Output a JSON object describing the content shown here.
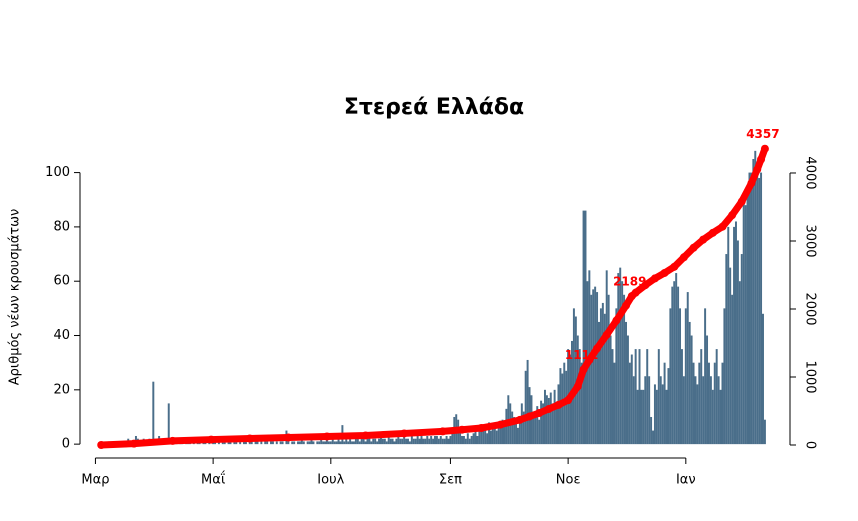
{
  "chart_data": {
    "type": "bar_line",
    "title": "Στερεά Ελλάδα",
    "ylabel": "Αριθμός νέων κρουσμάτων",
    "xlim": [
      -8,
      360
    ],
    "xticks": [
      {
        "value": 0,
        "label": "Μαρ"
      },
      {
        "value": 61,
        "label": "Μαΐ"
      },
      {
        "value": 122,
        "label": "Ιουλ"
      },
      {
        "value": 184,
        "label": "Σεπ"
      },
      {
        "value": 245,
        "label": "Νοε"
      },
      {
        "value": 306,
        "label": "Ιαν"
      }
    ],
    "ylim": [
      -4,
      112
    ],
    "yticks": [
      0,
      20,
      40,
      60,
      80,
      100
    ],
    "y2lim": [
      -147,
      4485
    ],
    "y2ticks": [
      0,
      1000,
      2000,
      3000,
      4000
    ],
    "series": [
      {
        "type": "bar",
        "color": "#4a6e8a",
        "x": [
          3,
          4,
          5,
          6,
          7,
          8,
          9,
          10,
          11,
          12,
          13,
          14,
          15,
          16,
          17,
          18,
          19,
          20,
          21,
          22,
          23,
          24,
          25,
          26,
          27,
          28,
          29,
          30,
          31,
          32,
          33,
          34,
          35,
          36,
          37,
          38,
          39,
          40,
          41,
          42,
          43,
          44,
          45,
          46,
          47,
          48,
          49,
          50,
          51,
          52,
          53,
          54,
          55,
          56,
          57,
          58,
          59,
          60,
          61,
          62,
          63,
          64,
          65,
          66,
          67,
          68,
          69,
          70,
          71,
          72,
          73,
          74,
          75,
          76,
          77,
          78,
          79,
          80,
          81,
          82,
          83,
          84,
          85,
          86,
          87,
          88,
          89,
          90,
          91,
          92,
          93,
          94,
          95,
          96,
          97,
          98,
          99,
          100,
          101,
          102,
          103,
          104,
          105,
          106,
          107,
          108,
          109,
          110,
          111,
          112,
          113,
          114,
          115,
          116,
          117,
          118,
          119,
          120,
          121,
          122,
          123,
          124,
          125,
          126,
          127,
          128,
          129,
          130,
          131,
          132,
          133,
          134,
          135,
          136,
          137,
          138,
          139,
          140,
          141,
          142,
          143,
          144,
          145,
          146,
          147,
          148,
          149,
          150,
          151,
          152,
          153,
          154,
          155,
          156,
          157,
          158,
          159,
          160,
          161,
          162,
          163,
          164,
          165,
          166,
          167,
          168,
          169,
          170,
          171,
          172,
          173,
          174,
          175,
          176,
          177,
          178,
          179,
          180,
          181,
          182,
          183,
          184,
          185,
          186,
          187,
          188,
          189,
          190,
          191,
          192,
          193,
          194,
          195,
          196,
          197,
          198,
          199,
          200,
          201,
          202,
          203,
          204,
          205,
          206,
          207,
          208,
          209,
          210,
          211,
          212,
          213,
          214,
          215,
          216,
          217,
          218,
          219,
          220,
          221,
          222,
          223,
          224,
          225,
          226,
          227,
          228,
          229,
          230,
          231,
          232,
          233,
          234,
          235,
          236,
          237,
          238,
          239,
          240,
          241,
          242,
          243,
          244,
          245,
          246,
          247,
          248,
          249,
          250,
          251,
          252,
          253,
          254,
          255,
          256,
          257,
          258,
          259,
          260,
          261,
          262,
          263,
          264,
          265,
          266,
          267,
          268,
          269,
          270,
          271,
          272,
          273,
          274,
          275,
          276,
          277,
          278,
          279,
          280,
          281,
          282,
          283,
          284,
          285,
          286,
          287,
          288,
          289,
          290,
          291,
          292,
          293,
          294,
          295,
          296,
          297,
          298,
          299,
          300,
          301,
          302,
          303,
          304,
          305,
          306,
          307,
          308,
          309,
          310,
          311,
          312,
          313,
          314,
          315,
          316,
          317,
          318,
          319,
          320,
          321,
          322,
          323,
          324,
          325,
          326,
          327,
          328,
          329,
          330,
          331,
          332,
          333,
          334,
          335,
          336,
          337,
          338,
          339,
          340,
          341,
          342,
          343,
          344,
          345,
          346,
          347
        ],
        "values": [
          0,
          0,
          0,
          0,
          1,
          0,
          1,
          0,
          1,
          1,
          1,
          0,
          1,
          1,
          2,
          1,
          0,
          1,
          3,
          2,
          1,
          1,
          2,
          1,
          1,
          2,
          1,
          23,
          2,
          1,
          3,
          2,
          1,
          2,
          2,
          15,
          1,
          2,
          1,
          1,
          0,
          1,
          1,
          0,
          1,
          1,
          1,
          0,
          1,
          0,
          1,
          1,
          0,
          1,
          1,
          0,
          1,
          0,
          1,
          1,
          0,
          1,
          0,
          1,
          1,
          0,
          1,
          1,
          0,
          1,
          1,
          0,
          1,
          0,
          1,
          1,
          0,
          1,
          1,
          0,
          1,
          1,
          0,
          1,
          0,
          1,
          1,
          0,
          1,
          1,
          0,
          1,
          0,
          1,
          1,
          0,
          5,
          1,
          0,
          1,
          1,
          0,
          1,
          1,
          2,
          1,
          0,
          1,
          1,
          2,
          1,
          0,
          1,
          1,
          2,
          1,
          1,
          2,
          1,
          1,
          2,
          1,
          1,
          2,
          1,
          7,
          1,
          2,
          1,
          2,
          1,
          1,
          2,
          2,
          1,
          2,
          2,
          1,
          2,
          3,
          1,
          2,
          2,
          1,
          2,
          3,
          2,
          2,
          1,
          3,
          2,
          2,
          1,
          2,
          3,
          2,
          2,
          3,
          2,
          2,
          1,
          3,
          2,
          2,
          3,
          2,
          3,
          2,
          2,
          3,
          2,
          3,
          2,
          3,
          3,
          2,
          3,
          2,
          2,
          3,
          2,
          3,
          4,
          10,
          11,
          9,
          4,
          3,
          3,
          2,
          4,
          2,
          3,
          4,
          5,
          3,
          6,
          5,
          7,
          6,
          4,
          8,
          5,
          6,
          7,
          5,
          8,
          7,
          9,
          7,
          13,
          18,
          15,
          12,
          10,
          8,
          6,
          10,
          15,
          12,
          27,
          31,
          21,
          18,
          12,
          10,
          14,
          9,
          16,
          15,
          20,
          18,
          17,
          19,
          15,
          20,
          15,
          22,
          28,
          26,
          30,
          27,
          35,
          33,
          38,
          50,
          47,
          40,
          35,
          30,
          86,
          86,
          60,
          64,
          55,
          57,
          58,
          56,
          45,
          50,
          52,
          48,
          64,
          55,
          40,
          35,
          30,
          50,
          63,
          65,
          60,
          55,
          45,
          40,
          30,
          33,
          25,
          35,
          20,
          35,
          20,
          20,
          25,
          35,
          25,
          10,
          5,
          22,
          20,
          35,
          25,
          22,
          30,
          20,
          28,
          50,
          58,
          60,
          63,
          58,
          50,
          35,
          25,
          50,
          56,
          45,
          40,
          30,
          25,
          22,
          30,
          35,
          25,
          50,
          40,
          30,
          25,
          20,
          30,
          35,
          25,
          20,
          30,
          50,
          70,
          80,
          65,
          55,
          80,
          82,
          75,
          60,
          70,
          90,
          88,
          95,
          100,
          100,
          105,
          108,
          104,
          98,
          100,
          48,
          9
        ]
      },
      {
        "type": "line",
        "axis": "y2",
        "color": "#ff0000",
        "x": [
          3,
          20,
          40,
          60,
          80,
          100,
          120,
          140,
          160,
          180,
          190,
          200,
          210,
          220,
          225,
          230,
          235,
          240,
          245,
          250,
          253,
          256,
          260,
          265,
          270,
          275,
          278,
          280,
          285,
          290,
          295,
          300,
          305,
          310,
          315,
          320,
          325,
          330,
          335,
          340,
          343,
          345,
          347
        ],
        "values": [
          0,
          20,
          60,
          80,
          95,
          110,
          125,
          140,
          170,
          200,
          225,
          250,
          300,
          370,
          420,
          470,
          530,
          590,
          660,
          860,
          1111,
          1250,
          1420,
          1620,
          1830,
          2050,
          2189,
          2240,
          2350,
          2450,
          2530,
          2620,
          2760,
          2900,
          3020,
          3120,
          3210,
          3380,
          3580,
          3850,
          4050,
          4200,
          4357
        ],
        "value_labels": [
          null,
          null,
          null,
          null,
          null,
          null,
          null,
          null,
          null,
          null,
          null,
          null,
          null,
          null,
          null,
          null,
          null,
          null,
          null,
          null,
          "1111",
          null,
          null,
          null,
          null,
          null,
          "2189",
          null,
          null,
          null,
          null,
          null,
          null,
          null,
          null,
          null,
          null,
          null,
          null,
          null,
          null,
          null,
          "4357"
        ]
      }
    ]
  }
}
